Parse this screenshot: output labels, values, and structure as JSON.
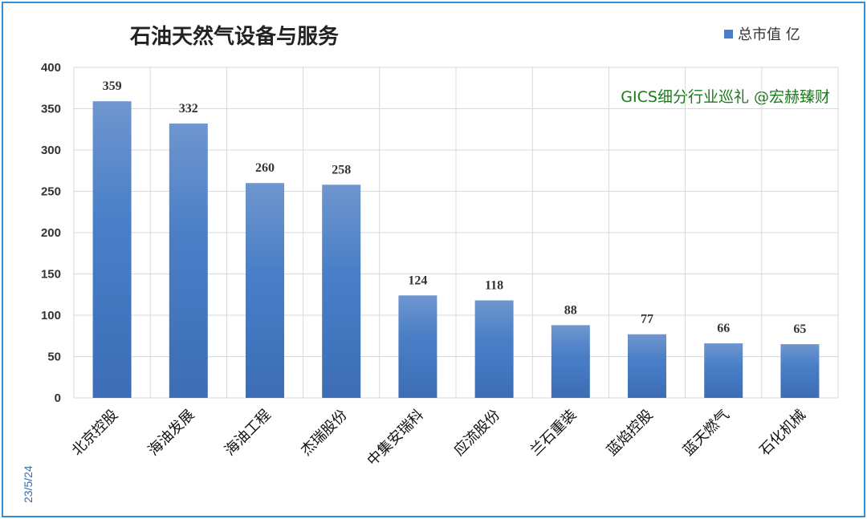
{
  "chart_data": {
    "type": "bar",
    "title": "石油天然气设备与服务",
    "categories": [
      "北京控股",
      "海油发展",
      "海油工程",
      "杰瑞股份",
      "中集安瑞科",
      "应流股份",
      "兰石重装",
      "蓝焰控股",
      "蓝天燃气",
      "石化机械"
    ],
    "series": [
      {
        "name": "总市值 亿",
        "values": [
          359,
          332,
          260,
          258,
          124,
          118,
          88,
          77,
          66,
          65
        ]
      }
    ],
    "ylim": [
      0,
      400
    ],
    "yticks": [
      0,
      50,
      100,
      150,
      200,
      250,
      300,
      350,
      400
    ],
    "grid": true,
    "legend_position": "top-right",
    "annotation": "GICS细分行业巡礼 @宏赫臻财",
    "date_label": "23/5/24",
    "colors": {
      "bar_top": "#6f96cf",
      "bar_mid": "#4a7fc7",
      "bar_bottom": "#3c6db5",
      "grid": "#d9d9d9",
      "frame": "#2e8fd6",
      "annotation": "#1a7a1a"
    }
  }
}
